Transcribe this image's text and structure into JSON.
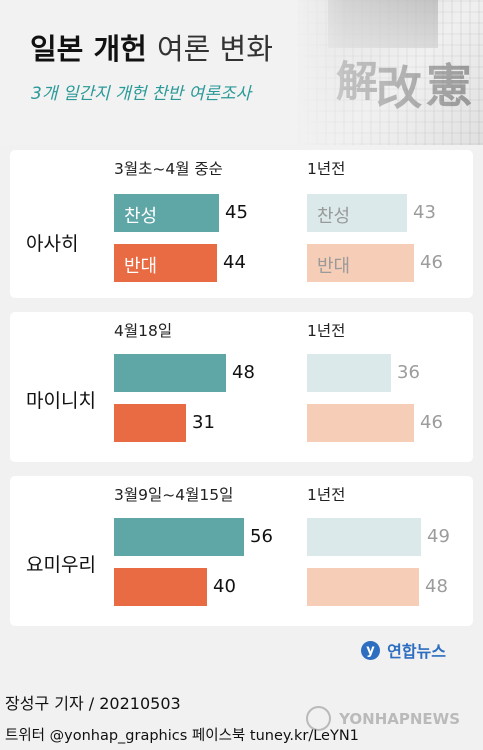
{
  "header": {
    "title_bold": "일본 개헌",
    "title_light": "여론 변화",
    "subtitle": "3개 일간지 개헌 찬반 여론조사",
    "background_glyphs": [
      "解",
      "改",
      "憲"
    ]
  },
  "chart_data": {
    "type": "bar",
    "orientation": "horizontal",
    "title": "일본 개헌 여론 변화",
    "subtitle": "3개 일간지 개헌 찬반 여론조사",
    "series_labels": {
      "support": "찬성",
      "oppose": "반대"
    },
    "colors": {
      "support": "#5fa6a7",
      "oppose": "#e96b43",
      "support_old": "#dbe9ea",
      "oppose_old": "#f6cdb7"
    },
    "panels": [
      {
        "newspaper": "아사히",
        "current": {
          "period": "3월초~4월 중순",
          "support": 45,
          "oppose": 44,
          "show_labels": true
        },
        "previous": {
          "period": "1년전",
          "support": 43,
          "oppose": 46,
          "show_labels": true
        }
      },
      {
        "newspaper": "마이니치",
        "current": {
          "period": "4월18일",
          "support": 48,
          "oppose": 31,
          "show_labels": false
        },
        "previous": {
          "period": "1년전",
          "support": 36,
          "oppose": 46,
          "show_labels": false
        }
      },
      {
        "newspaper": "요미우리",
        "current": {
          "period": "3월9일~4월15일",
          "support": 56,
          "oppose": 40,
          "show_labels": false
        },
        "previous": {
          "period": "1년전",
          "support": 49,
          "oppose": 48,
          "show_labels": false
        }
      }
    ]
  },
  "footer": {
    "logo_mark": "y",
    "logo_text": "연합뉴스",
    "credit": "장성구 기자 / 20210503",
    "social": "트위터 @yonhap_graphics  페이스북 tuney.kr/LeYN1",
    "watermark": "YONHAPNEWS"
  }
}
